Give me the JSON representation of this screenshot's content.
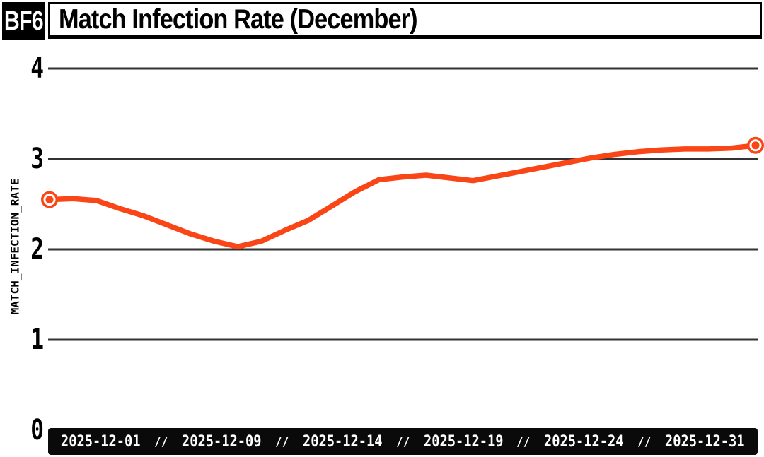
{
  "header": {
    "badge": "BF6",
    "title": "Match Infection Rate (December)"
  },
  "y_axis": {
    "label": "MATCH_INFECTION_RATE"
  },
  "x_axis": {
    "tick_labels": [
      "2025-12-01",
      "2025-12-09",
      "2025-12-14",
      "2025-12-19",
      "2025-12-24",
      "2025-12-31"
    ],
    "separator": "//"
  },
  "colors": {
    "line": "#FA4616",
    "grid": "#333333",
    "axis_bar_bg": "#0A0A0A",
    "axis_bar_text": "#FFFFFF",
    "header_black": "#000000",
    "background": "#FFFFFF"
  },
  "chart_data": {
    "type": "line",
    "title": "Match Infection Rate (December)",
    "xlabel": "",
    "ylabel": "MATCH_INFECTION_RATE",
    "ylim": [
      0,
      4
    ],
    "yticks": [
      0,
      1,
      2,
      3,
      4
    ],
    "grid": "horizontal",
    "legend": "none",
    "markers": "first-and-last-point",
    "x_tick_labels_shown": [
      "2025-12-01",
      "2025-12-09",
      "2025-12-14",
      "2025-12-19",
      "2025-12-24",
      "2025-12-31"
    ],
    "x": [
      "2025-12-01",
      "2025-12-02",
      "2025-12-03",
      "2025-12-04",
      "2025-12-05",
      "2025-12-06",
      "2025-12-07",
      "2025-12-08",
      "2025-12-09",
      "2025-12-10",
      "2025-12-11",
      "2025-12-12",
      "2025-12-13",
      "2025-12-14",
      "2025-12-15",
      "2025-12-16",
      "2025-12-17",
      "2025-12-18",
      "2025-12-19",
      "2025-12-20",
      "2025-12-21",
      "2025-12-22",
      "2025-12-23",
      "2025-12-24",
      "2025-12-25",
      "2025-12-26",
      "2025-12-27",
      "2025-12-28",
      "2025-12-29",
      "2025-12-30",
      "2025-12-31"
    ],
    "series": [
      {
        "name": "MATCH_INFECTION_RATE",
        "values": [
          2.55,
          2.56,
          2.54,
          2.45,
          2.37,
          2.27,
          2.17,
          2.09,
          2.03,
          2.09,
          2.21,
          2.32,
          2.48,
          2.64,
          2.77,
          2.8,
          2.82,
          2.79,
          2.76,
          2.81,
          2.86,
          2.91,
          2.96,
          3.01,
          3.05,
          3.08,
          3.1,
          3.11,
          3.11,
          3.12,
          3.15
        ]
      }
    ]
  }
}
